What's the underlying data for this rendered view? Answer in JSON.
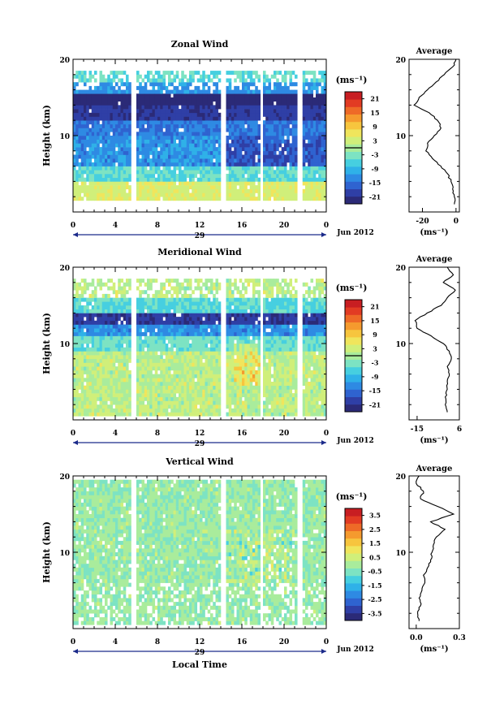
{
  "common": {
    "x_ticks": [
      "0",
      "4",
      "8",
      "12",
      "16",
      "20",
      "0"
    ],
    "date_label": "29",
    "month_label": "Jun 2012",
    "y_label": "Height (km)",
    "y_ticks": [
      "10",
      "20"
    ],
    "unit_label": "(ms⁻¹)",
    "avg_title": "Average",
    "x_axis_title": "Local Time",
    "colormap": [
      "#2b2a77",
      "#2f3fa6",
      "#2f63d0",
      "#2e8ae3",
      "#2fb1e8",
      "#46cfe0",
      "#7de3c3",
      "#a9ec9c",
      "#d0ef7a",
      "#f0e55c",
      "#f7c53e",
      "#f59a2e",
      "#ee6a27",
      "#e23b23",
      "#c81e22"
    ]
  },
  "chart_data": [
    {
      "type": "heatmap",
      "title": "Zonal Wind",
      "ylabel": "Height (km)",
      "xlabel": "",
      "ylim": [
        0,
        20
      ],
      "xlim": [
        0,
        24
      ],
      "colorbar": {
        "ticks": [
          "21",
          "15",
          "9",
          "3",
          "-3",
          "-9",
          "-15",
          "-21"
        ],
        "range": [
          -24,
          24
        ],
        "contour_at": "0"
      },
      "data_gaps_hours": [
        [
          5.5,
          6.0
        ],
        [
          14.0,
          14.5
        ],
        [
          17.7,
          18.1
        ],
        [
          21.3,
          21.7
        ]
      ],
      "coverage_km": [
        1.5,
        18.5
      ],
      "profile": {
        "xlabel": "(ms⁻¹)",
        "x_ticks": [
          "-20",
          "0"
        ],
        "xlim": [
          -28,
          2
        ],
        "heights_km": [
          1,
          2,
          3,
          4,
          5,
          6,
          7,
          8,
          9,
          10,
          11,
          12,
          13,
          14,
          15,
          16,
          17,
          18,
          19,
          20
        ],
        "values": [
          -1,
          -1,
          -2,
          -3,
          -5,
          -9,
          -14,
          -18,
          -17,
          -13,
          -9,
          -11,
          -16,
          -25,
          -22,
          -17,
          -12,
          -7,
          -2,
          0
        ]
      }
    },
    {
      "type": "heatmap",
      "title": "Meridional Wind",
      "ylabel": "Height (km)",
      "xlabel": "",
      "ylim": [
        0,
        20
      ],
      "xlim": [
        0,
        24
      ],
      "colorbar": {
        "ticks": [
          "21",
          "15",
          "9",
          "3",
          "-3",
          "-9",
          "-15",
          "-21"
        ],
        "range": [
          -24,
          24
        ],
        "contour_at": "0"
      },
      "data_gaps_hours": [
        [
          5.5,
          6.0
        ],
        [
          14.0,
          14.5
        ],
        [
          17.7,
          18.1
        ],
        [
          21.3,
          21.7
        ]
      ],
      "coverage_km": [
        0.5,
        18.5
      ],
      "profile": {
        "xlabel": "(ms⁻¹)",
        "x_ticks": [
          "-15",
          "6"
        ],
        "xlim": [
          -19,
          6
        ],
        "heights_km": [
          1,
          2,
          3,
          4,
          5,
          6,
          7,
          8,
          9,
          10,
          11,
          12,
          13,
          14,
          15,
          16,
          17,
          18,
          19,
          20
        ],
        "values": [
          0,
          -1,
          -1,
          0,
          0,
          1,
          0,
          2,
          1,
          -2,
          -8,
          -15,
          -16,
          -10,
          -3,
          0,
          4,
          -2,
          3,
          0
        ]
      }
    },
    {
      "type": "heatmap",
      "title": "Vertical Wind",
      "ylabel": "Height (km)",
      "xlabel": "Local Time",
      "ylim": [
        0,
        20
      ],
      "xlim": [
        0,
        24
      ],
      "colorbar": {
        "ticks": [
          "3.5",
          "2.5",
          "1.5",
          "0.5",
          "-0.5",
          "-1.5",
          "-2.5",
          "-3.5"
        ],
        "range": [
          -4,
          4
        ],
        "contour_at": ""
      },
      "data_gaps_hours": [
        [
          5.5,
          6.0
        ],
        [
          14.0,
          14.5
        ],
        [
          17.7,
          18.1
        ],
        [
          21.3,
          21.7
        ]
      ],
      "coverage_km": [
        0.5,
        19.5
      ],
      "profile": {
        "xlabel": "(ms⁻¹)",
        "x_ticks": [
          "0.0",
          "0.3"
        ],
        "xlim": [
          -0.05,
          0.3
        ],
        "heights_km": [
          1,
          2,
          3,
          4,
          5,
          6,
          7,
          8,
          9,
          10,
          11,
          12,
          13,
          14,
          15,
          16,
          17,
          18,
          19,
          20
        ],
        "values": [
          0.02,
          0.01,
          0.03,
          0.02,
          0.04,
          0.06,
          0.05,
          0.08,
          0.1,
          0.11,
          0.12,
          0.14,
          0.2,
          0.1,
          0.26,
          0.15,
          0.03,
          0.05,
          0.0,
          0.02
        ]
      }
    }
  ]
}
